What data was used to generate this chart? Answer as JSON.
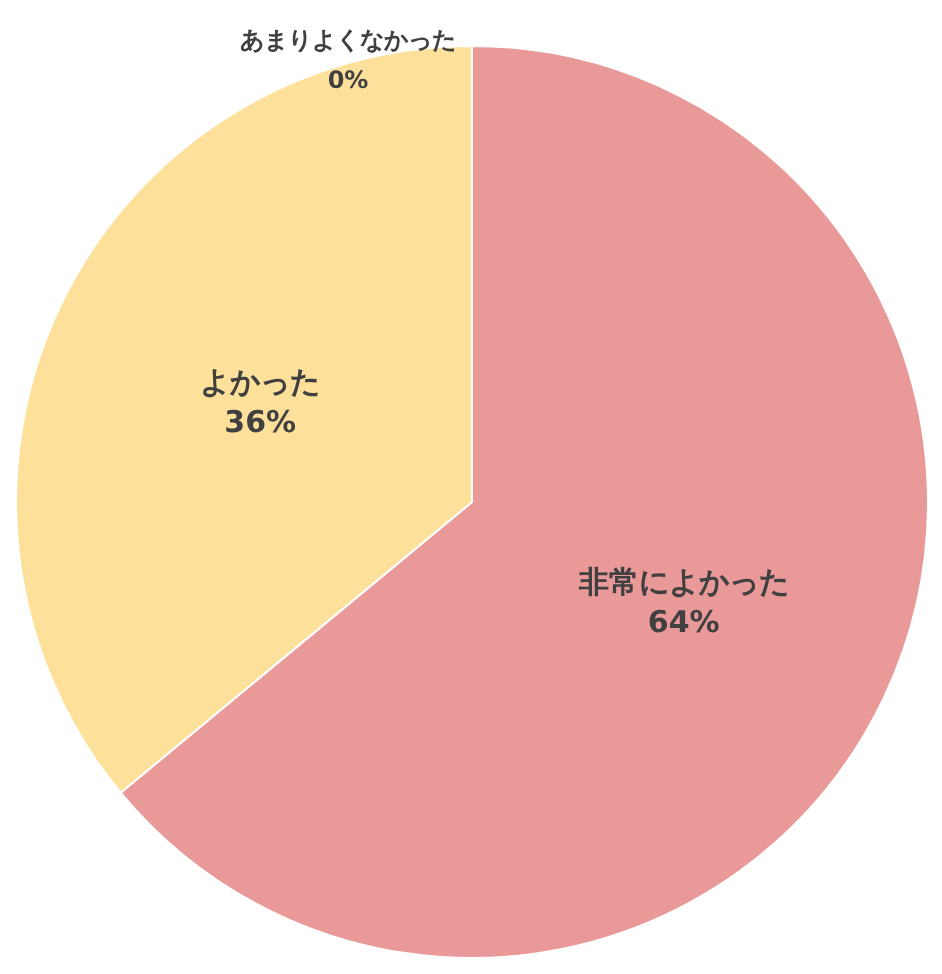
{
  "chart_data": {
    "type": "pie",
    "categories": [
      "非常によかった",
      "よかった",
      "あまりよくなかった"
    ],
    "values": [
      64,
      36,
      0
    ],
    "colors": [
      "#ea9999",
      "#fde09a",
      "#b6d7a8"
    ],
    "value_labels": [
      "64%",
      "36%",
      "0%"
    ],
    "legend": false
  }
}
